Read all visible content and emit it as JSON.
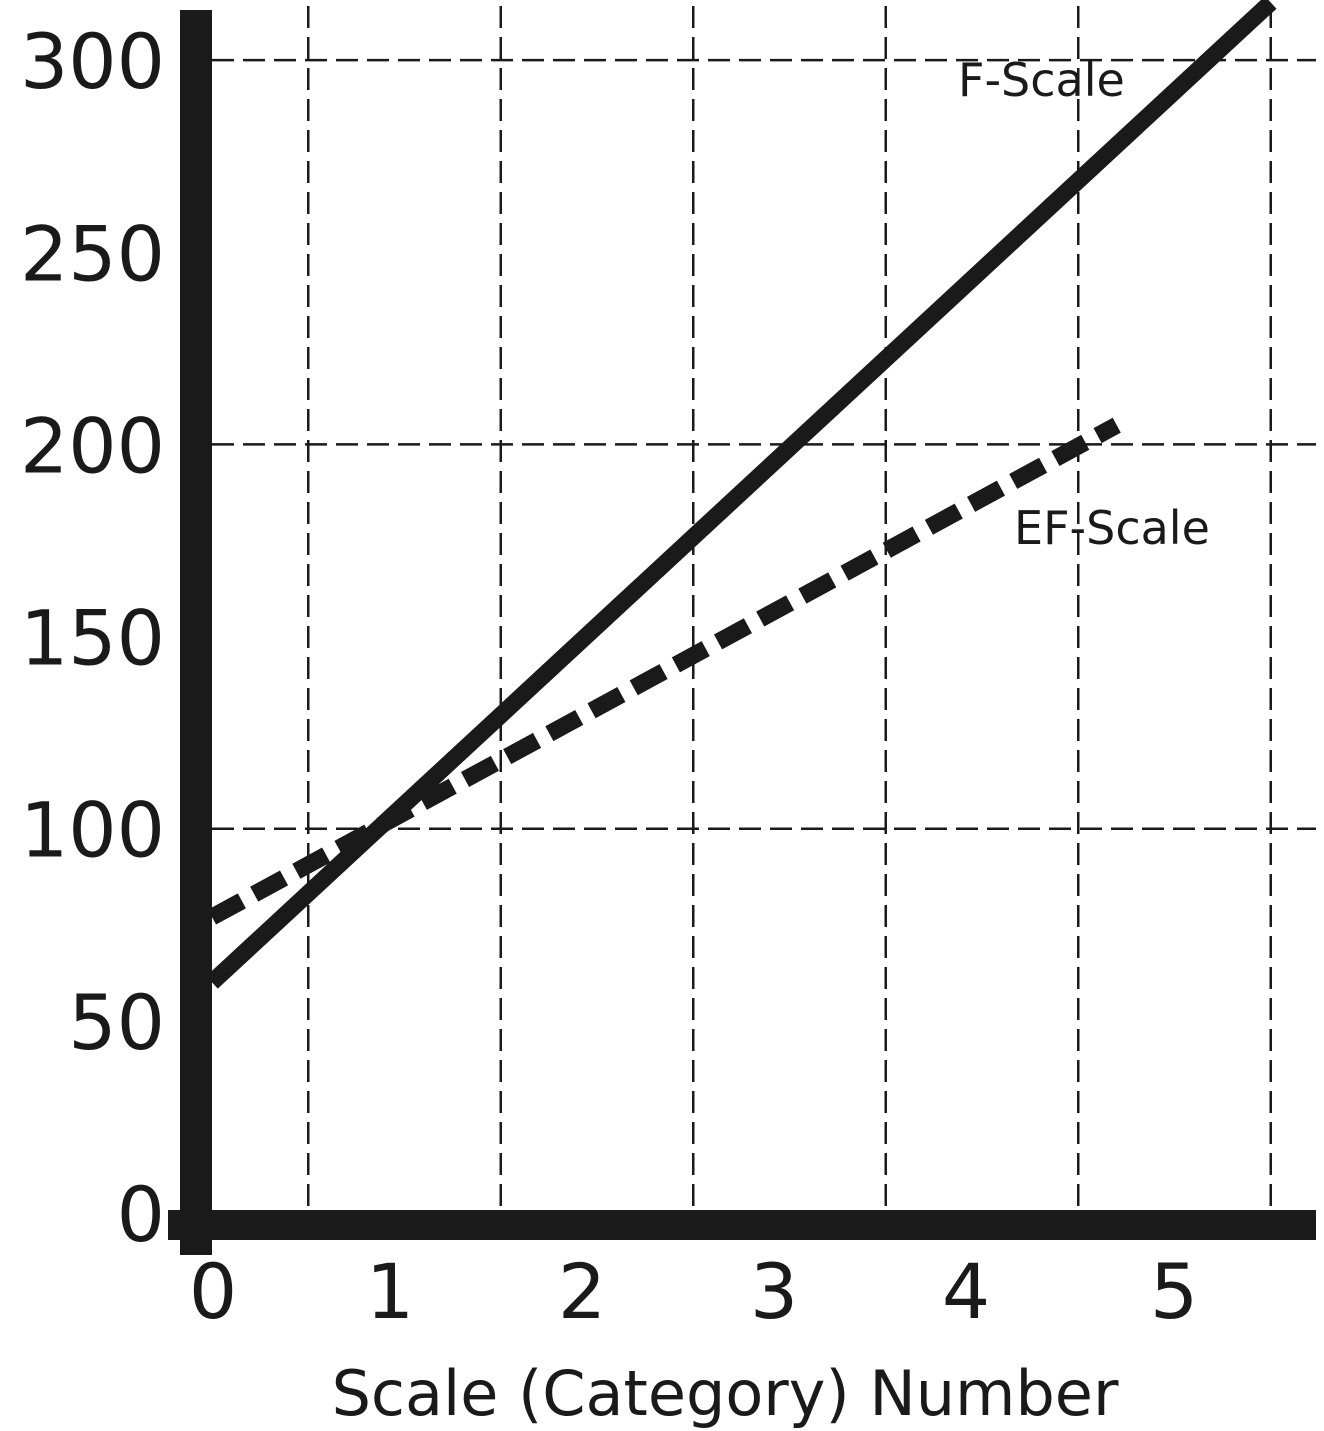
{
  "chart_data": {
    "type": "line",
    "title": "",
    "xlabel": "Scale (Category) Number",
    "ylabel": "",
    "xlim": [
      0,
      5.5
    ],
    "ylim": [
      0,
      310
    ],
    "x_ticks": [
      0,
      1,
      2,
      3,
      4,
      5
    ],
    "x_tick_labels": [
      "0",
      "1",
      "2",
      "3",
      "4",
      "5"
    ],
    "y_ticks": [
      0,
      50,
      100,
      150,
      200,
      250,
      300
    ],
    "y_tick_labels": [
      "0",
      "50",
      "100",
      "150",
      "200",
      "250",
      "300"
    ],
    "x_gridlines": [
      0.5,
      1.5,
      2.5,
      3.5,
      4.5,
      5.5
    ],
    "y_gridlines": [
      100,
      200,
      300
    ],
    "grid": true,
    "legend": "none",
    "series": [
      {
        "name": "F-Scale",
        "style": "solid",
        "color": "#1a1a1a",
        "x": [
          0,
          5.5
        ],
        "y": [
          60,
          315
        ]
      },
      {
        "name": "EF-Scale",
        "style": "dashed",
        "color": "#1a1a1a",
        "x": [
          0,
          4.7
        ],
        "y": [
          77,
          205
        ]
      }
    ]
  }
}
